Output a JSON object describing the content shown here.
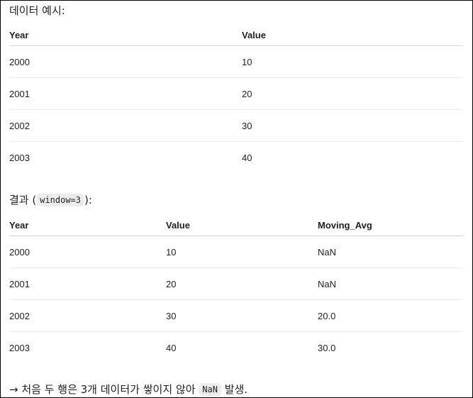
{
  "example": {
    "title": "데이터 예시:",
    "headers": [
      "Year",
      "Value"
    ],
    "rows": [
      [
        "2000",
        "10"
      ],
      [
        "2001",
        "20"
      ],
      [
        "2002",
        "30"
      ],
      [
        "2003",
        "40"
      ]
    ]
  },
  "result": {
    "title_prefix": "결과 (",
    "title_code": "window=3",
    "title_suffix": "):",
    "headers": [
      "Year",
      "Value",
      "Moving_Avg"
    ],
    "rows": [
      [
        "2000",
        "10",
        "NaN"
      ],
      [
        "2001",
        "20",
        "NaN"
      ],
      [
        "2002",
        "30",
        "20.0"
      ],
      [
        "2003",
        "40",
        "30.0"
      ]
    ]
  },
  "note": {
    "prefix": "→ 처음 두 행은 3개 데이터가 쌓이지 않아 ",
    "code": "NaN",
    "suffix": " 발생."
  }
}
